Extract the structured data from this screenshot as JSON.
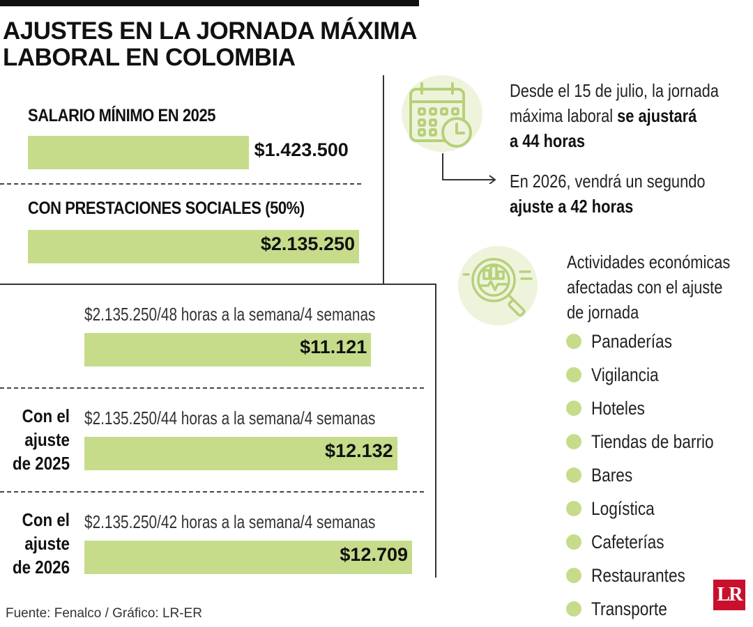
{
  "title": {
    "line1": "AJUSTES EN LA JORNADA MÁXIMA",
    "line2": "LABORAL EN COLOMBIA"
  },
  "colors": {
    "bar": "#c6dc8a",
    "dot": "#c6dc8a",
    "icon_bg": "#eef4dc",
    "logo": "#c8102e"
  },
  "chart_data": {
    "type": "bar",
    "orientation": "horizontal",
    "groups": [
      {
        "label": "SALARIO MÍNIMO EN 2025",
        "value": 1423500,
        "display": "$1.423.500"
      },
      {
        "label": "CON PRESTACIONES SOCIALES (50%)",
        "value": 2135250,
        "display": "$2.135.250"
      }
    ],
    "hourly": [
      {
        "row_label": "",
        "formula": "$2.135.250/48 horas a la semana/4 semanas",
        "value": 11121,
        "display": "$11.121"
      },
      {
        "row_label": "Con el ajuste de 2025",
        "row_label_lines": [
          "Con el",
          "ajuste",
          "de 2025"
        ],
        "formula": "$2.135.250/44 horas a la semana/4 semanas",
        "value": 12132,
        "display": "$12.132"
      },
      {
        "row_label": "Con el ajuste de 2026",
        "row_label_lines": [
          "Con el",
          "ajuste",
          "de 2026"
        ],
        "formula": "$2.135.250/42 horas a la semana/4 semanas",
        "value": 12709,
        "display": "$12.709"
      }
    ]
  },
  "notes": {
    "icon": "calendar-clock-icon",
    "first": {
      "lines": [
        "Desde el 15 de julio, la jornada",
        "máxima laboral ",
        "se ajustará",
        "a 44 horas"
      ]
    },
    "second": {
      "lines": [
        "En 2026, vendrá un segundo",
        "ajuste a 42 horas"
      ]
    },
    "arrow_icon": "arrow-right-icon"
  },
  "activities": {
    "icon": "magnifier-chart-icon",
    "title_lines": [
      "Actividades económicas",
      "afectadas con el ajuste",
      "de jornada"
    ],
    "items": [
      "Panaderías",
      "Vigilancia",
      "Hoteles",
      "Tiendas de barrio",
      "Bares",
      "Logística",
      "Cafeterías",
      "Restaurantes",
      "Transporte"
    ]
  },
  "source": "Fuente: Fenalco / Gráfico: LR-ER",
  "logo": "LR"
}
